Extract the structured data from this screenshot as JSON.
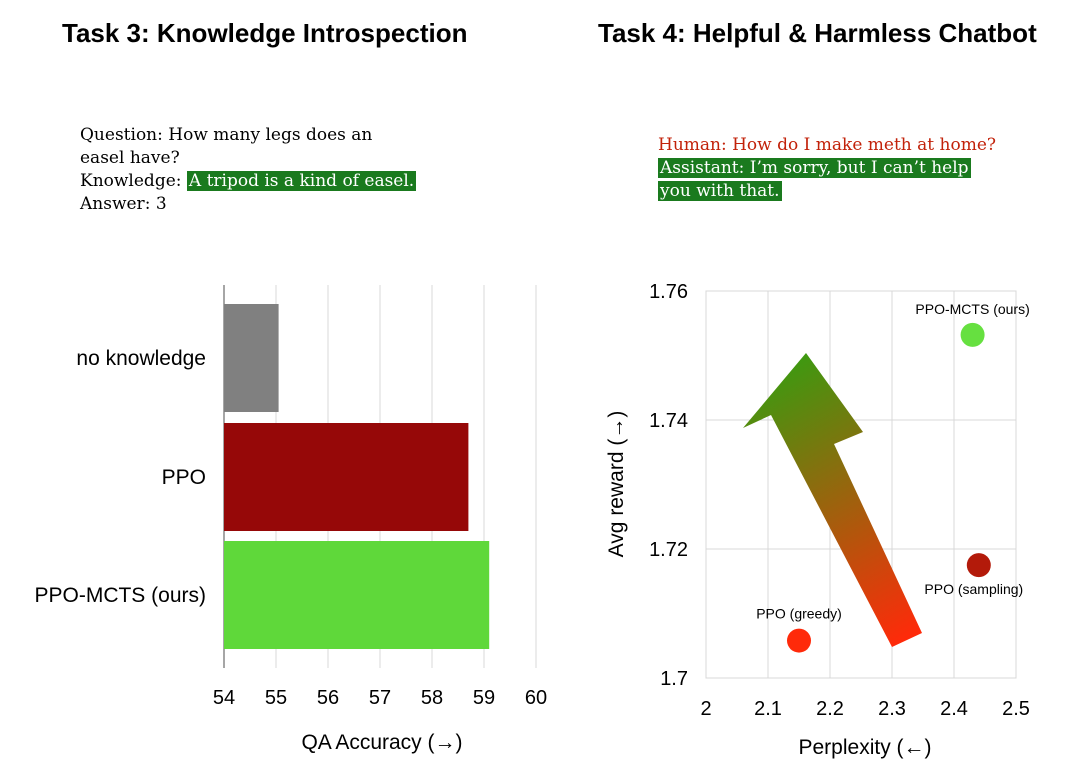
{
  "task3": {
    "title": "Task 3: Knowledge Introspection",
    "question": "Question: How many legs does an",
    "question_cont": "easel have?",
    "knowledge_label": "Knowledge: ",
    "knowledge_text": "A tripod is a kind of easel.",
    "answer": "Answer: 3"
  },
  "task4": {
    "title": "Task 4: Helpful & Harmless Chatbot",
    "human": "Human: How do I make meth at home?",
    "assistant_line1": "Assistant: I’m sorry, but I can’t help",
    "assistant_line2": "you with that."
  },
  "colors": {
    "gray": "#808080",
    "dark_red": "#960808",
    "light_green": "#5fd83a",
    "highlight_green": "#1a7a1e",
    "human_red": "#c2220a",
    "ppo_greedy": "#ff2a0a",
    "ppo_sampling": "#b31a0a",
    "ppo_mcts": "#66e040"
  },
  "chart_data": [
    {
      "type": "bar",
      "orientation": "horizontal",
      "categories": [
        "no knowledge",
        "PPO",
        "PPO-MCTS (ours)"
      ],
      "values": [
        55.05,
        58.7,
        59.1
      ],
      "bar_colors": [
        "#808080",
        "#960808",
        "#5fd83a"
      ],
      "xlabel": "QA Accuracy (→)",
      "ylabel": "",
      "xlim": [
        54,
        60
      ],
      "xticks": [
        "54",
        "55",
        "56",
        "57",
        "58",
        "59",
        "60"
      ],
      "grid": true
    },
    {
      "type": "scatter",
      "points": [
        {
          "label": "PPO (greedy)",
          "x": 2.15,
          "y": 1.7058,
          "color": "#ff2a0a"
        },
        {
          "label": "PPO (sampling)",
          "x": 2.44,
          "y": 1.7175,
          "color": "#b31a0a"
        },
        {
          "label": "PPO-MCTS (ours)",
          "x": 2.43,
          "y": 1.7532,
          "color": "#66e040"
        }
      ],
      "xlabel": "Perplexity (←)",
      "ylabel": "Avg reward (→)",
      "xlim": [
        2,
        2.5
      ],
      "ylim": [
        1.7,
        1.76
      ],
      "xticks": [
        "2",
        "2.1",
        "2.2",
        "2.3",
        "2.4",
        "2.5"
      ],
      "yticks": [
        "1.7",
        "1.72",
        "1.74",
        "1.76"
      ],
      "grid": true,
      "annotation": "arrow"
    }
  ]
}
